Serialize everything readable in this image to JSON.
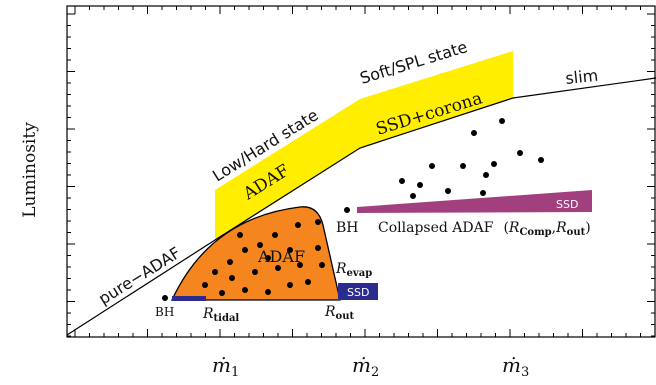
{
  "axes": {
    "y_label": "Luminosity",
    "x_ticks": [
      {
        "symbol": "ṁ",
        "subscript": "1"
      },
      {
        "symbol": "ṁ",
        "subscript": "2"
      },
      {
        "symbol": "ṁ",
        "subscript": "3"
      }
    ]
  },
  "regions": {
    "pure_adaf": "pure−ADAF",
    "low_hard": "Low/Hard state",
    "soft_spl": "Soft/SPL state",
    "slim": "slim",
    "adaf_band": "ADAF",
    "ssd_corona": "SSD+corona"
  },
  "low_state": {
    "adaf": "ADAF",
    "bh": "BH",
    "r_tidal": {
      "symbol": "R",
      "subscript": "tidal"
    },
    "r_out": {
      "symbol": "R",
      "subscript": "out"
    },
    "r_evap": {
      "symbol": "R",
      "subscript": "evap"
    },
    "ssd": "SSD"
  },
  "high_state": {
    "bh": "BH",
    "collapsed": {
      "text": "Collapsed ADAF",
      "open": "(",
      "r1": {
        "symbol": "R",
        "subscript": "Comp"
      },
      "comma": ",",
      "r2": {
        "symbol": "R",
        "subscript": "out"
      },
      "close": ")"
    },
    "ssd": "SSD"
  }
}
